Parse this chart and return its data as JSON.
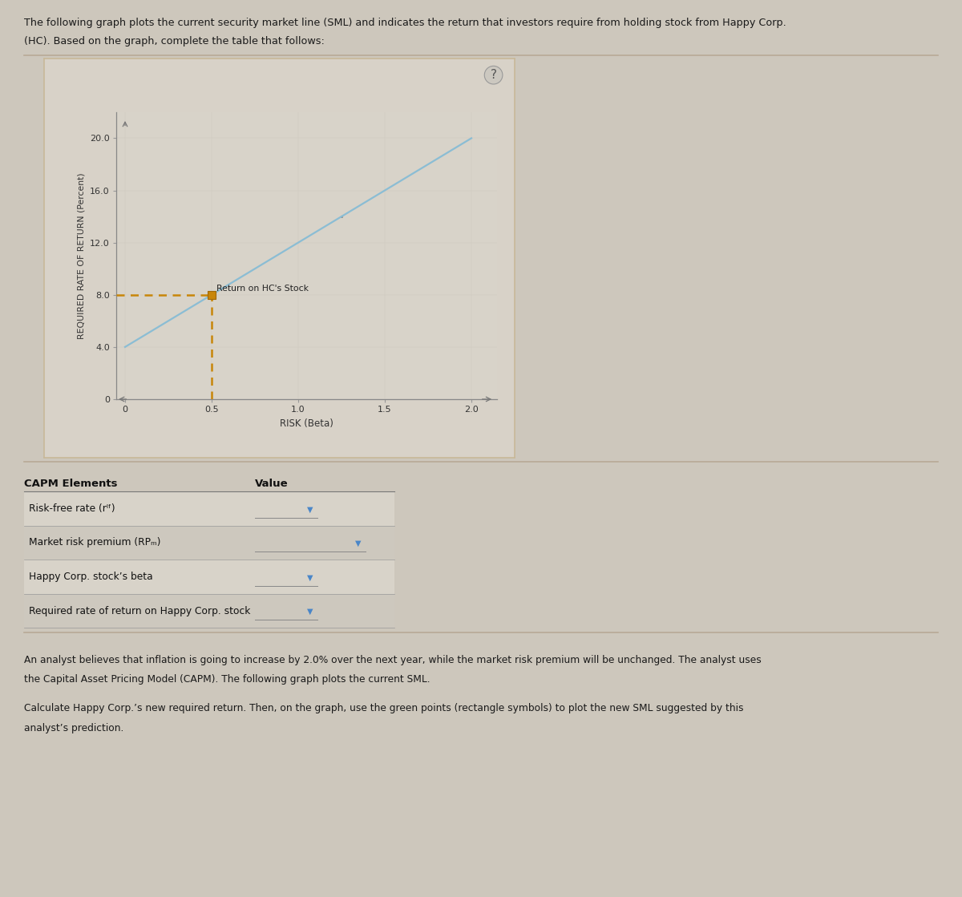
{
  "page_bg": "#cdc7bc",
  "panel_outer_bg": "#d8d2c8",
  "panel_inner_bg": "#dbd5cb",
  "graph_bg": "#d8d3c9",
  "top_text_line1": "The following graph plots the current security market line (SML) and indicates the return that investors require from holding stock from Happy Corp.",
  "top_text_line2": "(HC). Based on the graph, complete the table that follows:",
  "ylabel": "REQUIRED RATE OF RETURN (Percent)",
  "xlabel": "RISK (Beta)",
  "ytick_labels": [
    "0",
    "4.0",
    "8.0",
    "12.0",
    "16.0",
    "20.0"
  ],
  "ytick_vals": [
    0,
    4.0,
    8.0,
    12.0,
    16.0,
    20.0
  ],
  "xtick_labels": [
    "0",
    "0.5",
    "1.0",
    "1.5",
    "2.0"
  ],
  "xtick_vals": [
    0,
    0.5,
    1.0,
    1.5,
    2.0
  ],
  "ylim": [
    0,
    22
  ],
  "xlim": [
    -0.05,
    2.15
  ],
  "risk_free_rate": 4.0,
  "market_risk_premium": 8.0,
  "hc_beta": 0.5,
  "hc_return": 8.0,
  "sml_color": "#8bbdd4",
  "sml_linewidth": 1.6,
  "hc_marker_color": "#c8860a",
  "dashed_color": "#c8860a",
  "hc_label": "Return on HC's Stock",
  "capm_row1": "Risk-free rate (rᴵᶠ)",
  "capm_row2": "Market risk premium (RPₘ)",
  "capm_row3": "Happy Corp. stock’s beta",
  "capm_row4": "Required rate of return on Happy Corp. stock",
  "bottom_text1": "An analyst believes that inflation is going to increase by 2.0% over the next year, while the market risk premium will be unchanged. The analyst uses",
  "bottom_text2": "the Capital Asset Pricing Model (CAPM). The following graph plots the current SML.",
  "bottom_text3": "Calculate Happy Corp.’s new required return. Then, on the graph, use the green points (rectangle symbols) to plot the new SML suggested by this",
  "bottom_text4": "analyst’s prediction.",
  "sep_color": "#b8aa96",
  "arrow_color": "#8899aa",
  "border_color": "#c8b898",
  "dot_x": 1.25,
  "dot_y": 14.0
}
